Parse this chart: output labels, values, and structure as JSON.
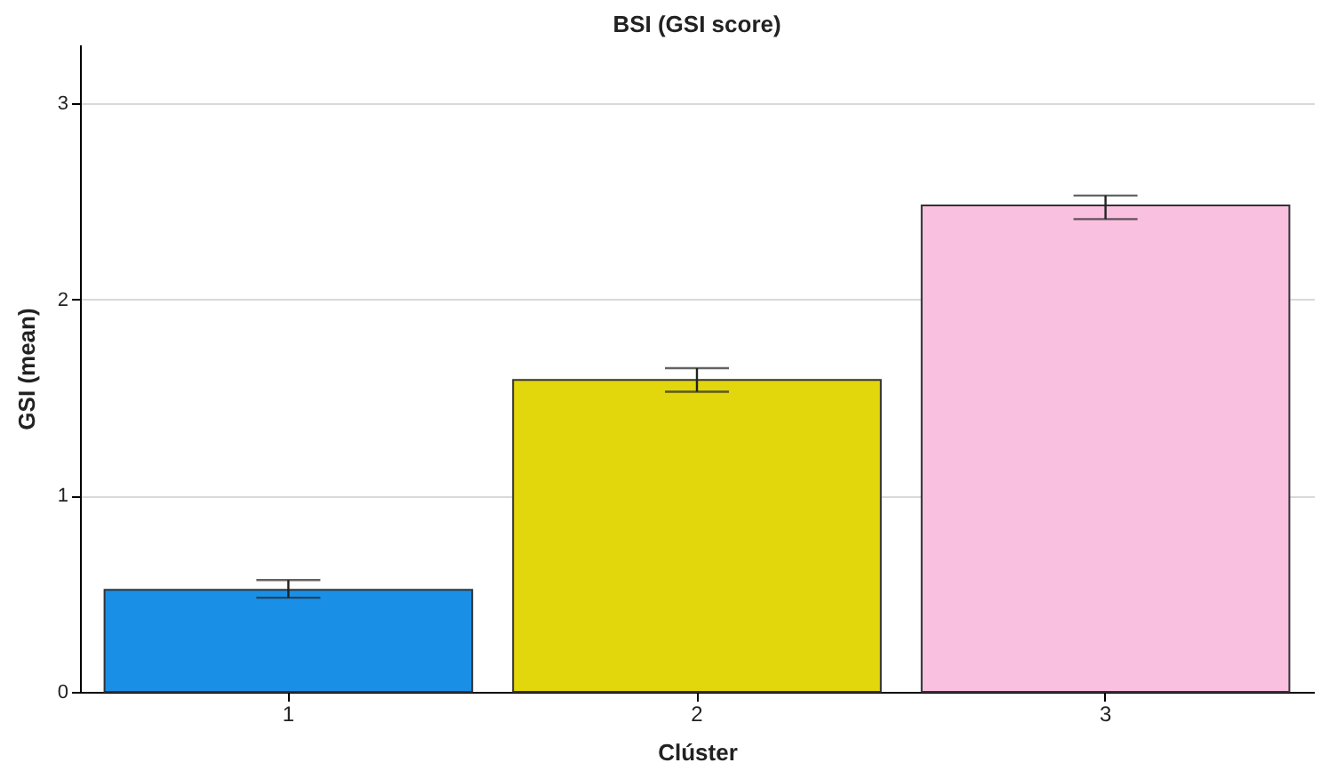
{
  "chart_data": {
    "type": "bar",
    "title": "BSI (GSI score)",
    "xlabel": "Clúster",
    "ylabel": "GSI (mean)",
    "categories": [
      "1",
      "2",
      "3"
    ],
    "values": [
      0.52,
      1.59,
      2.48
    ],
    "colors": [
      "#1a8fe6",
      "#e2d60c",
      "#fac0e0"
    ],
    "errors": [
      [
        0.48,
        0.57
      ],
      [
        1.53,
        1.65
      ],
      [
        2.41,
        2.53
      ]
    ],
    "ylim": [
      0,
      3.3
    ],
    "yticks": [
      0,
      1,
      2,
      3
    ],
    "grid": "y"
  }
}
